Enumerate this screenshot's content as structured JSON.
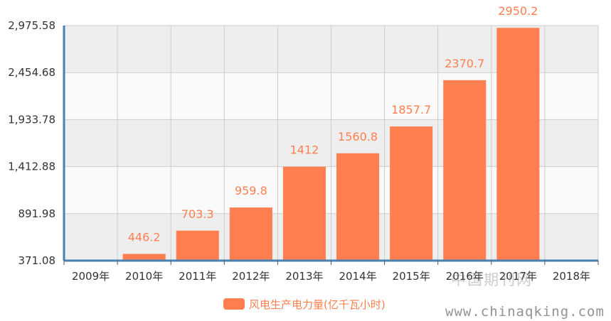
{
  "chart_data": {
    "type": "bar",
    "categories": [
      "2009年",
      "2010年",
      "2011年",
      "2012年",
      "2013年",
      "2014年",
      "2015年",
      "2016年",
      "2017年",
      "2018年"
    ],
    "series": [
      {
        "name": "风电生产电力量(亿千瓦小时)",
        "values": [
          null,
          446.2,
          703.3,
          959.8,
          1412,
          1560.8,
          1857.7,
          2370.7,
          2950.2,
          null
        ],
        "labels": [
          "",
          "446.2",
          "703.3",
          "959.8",
          "1412",
          "1560.8",
          "1857.7",
          "2370.7",
          "2950.2",
          ""
        ]
      }
    ],
    "yticks": [
      "371.08",
      "891.98",
      "1,412.88",
      "1,933.78",
      "2,454.68",
      "2,975.58"
    ],
    "ylim": [
      371.08,
      2975.58
    ],
    "grid": true,
    "legend_position": "bottom-center",
    "colors": {
      "bar": "#ff7f50",
      "label": "#ff7f50",
      "axis": "#4682b4",
      "grid": "#cccccc",
      "band_shaded": "#eeeeee",
      "band_plain": "#fafafa"
    }
  },
  "legend": {
    "label": "风电生产电力量(亿千瓦小时)"
  },
  "watermark": {
    "text": "中国期刊网",
    "url": "www.chinaqking.com"
  }
}
